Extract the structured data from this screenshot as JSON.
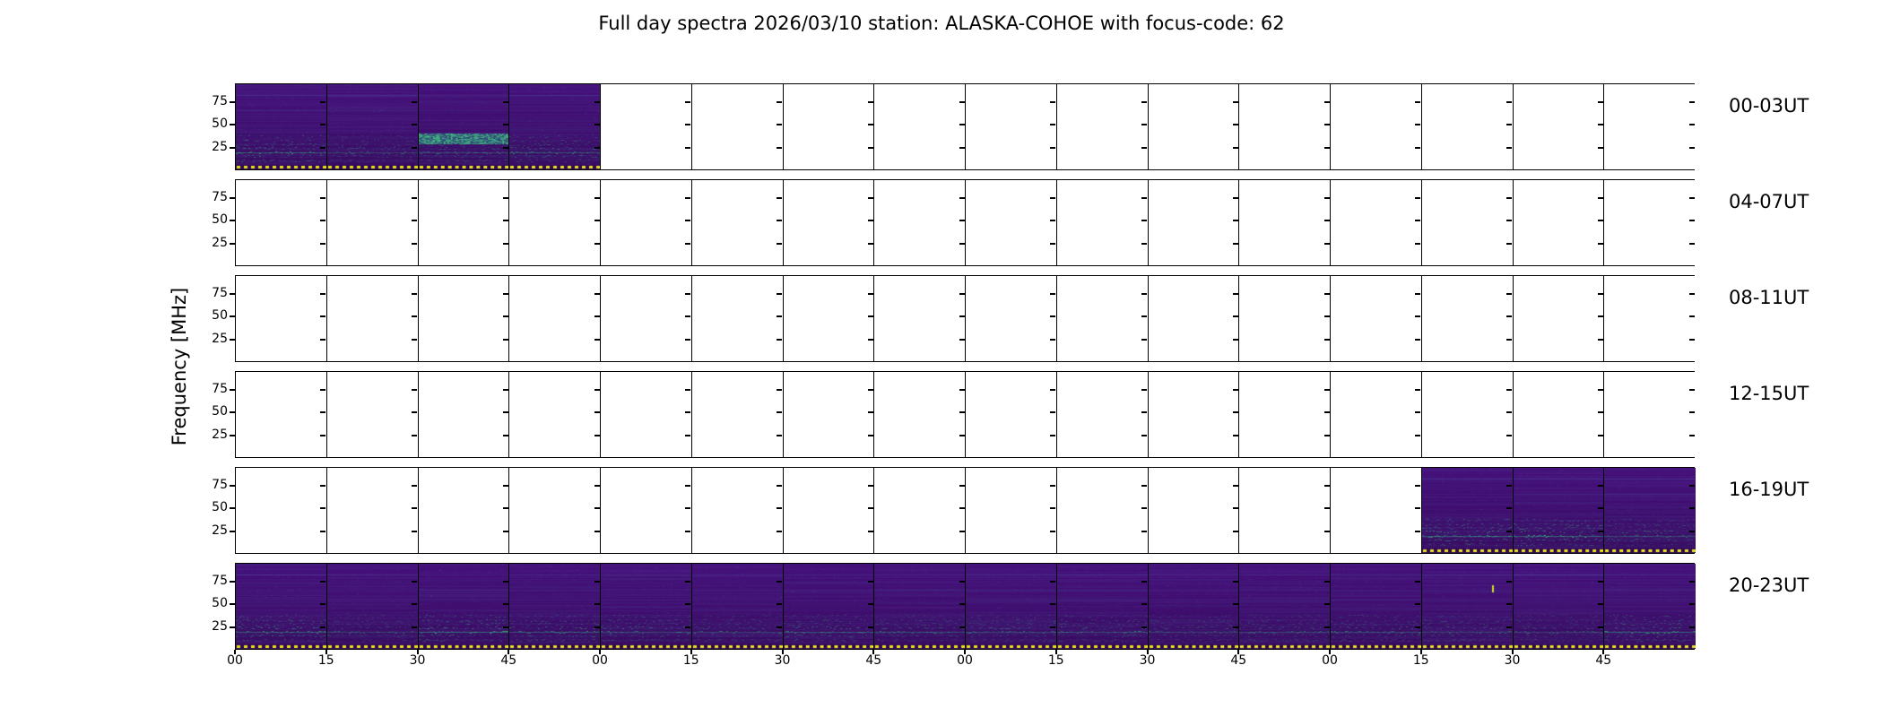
{
  "title": "Full day spectra 2026/03/10 station: ALASKA-COHOE with focus-code: 62",
  "y_axis": {
    "label": "Frequency [MHz]",
    "ticks": [
      "75",
      "50",
      "25"
    ]
  },
  "x_axis": {
    "tick_labels": [
      "00",
      "15",
      "30",
      "45",
      "00",
      "15",
      "30",
      "45",
      "00",
      "15",
      "30",
      "45",
      "00",
      "15",
      "30",
      "45"
    ]
  },
  "rows": [
    {
      "label": "00-03UT",
      "data_panels": [
        0,
        1,
        2,
        3
      ]
    },
    {
      "label": "04-07UT",
      "data_panels": []
    },
    {
      "label": "08-11UT",
      "data_panels": []
    },
    {
      "label": "12-15UT",
      "data_panels": []
    },
    {
      "label": "16-19UT",
      "data_panels": [
        13,
        14,
        15
      ]
    },
    {
      "label": "20-23UT",
      "data_panels": [
        0,
        1,
        2,
        3,
        4,
        5,
        6,
        7,
        8,
        9,
        10,
        11,
        12,
        13,
        14,
        15
      ]
    }
  ],
  "panels_per_row": 16,
  "features": [
    {
      "row": 0,
      "panel": 2,
      "type": "bright-band",
      "description": "strong teal emission band near 25 MHz, 00:30-00:45"
    },
    {
      "row": 5,
      "panel": 13,
      "type": "point-burst",
      "description": "short bright burst near 70 MHz around 23:20"
    }
  ],
  "colors": {
    "figure_background": "#ffffff",
    "panel_empty": "#ffffff",
    "border": "#000000",
    "spectrogram_base": "#45107a",
    "spectrogram_base_dark": "#380c60",
    "streak_purple": "#6b5ec2",
    "streak_blue": "#4d6fb0",
    "teal": "#21918c",
    "teal_bright": "#35b779",
    "yellow_dash": "#e8e41c",
    "burst": "#d0e11d"
  },
  "chart_data": {
    "type": "heatmap",
    "title": "Full day spectra 2026/03/10 station: ALASKA-COHOE with focus-code: 62",
    "station": "ALASKA-COHOE",
    "date": "2026/03/10",
    "focus_code": "62",
    "ylabel": "Frequency [MHz]",
    "y_ticks_mhz": [
      75,
      50,
      25
    ],
    "x_tick_labels_minutes": [
      "00",
      "15",
      "30",
      "45",
      "00",
      "15",
      "30",
      "45",
      "00",
      "15",
      "30",
      "45",
      "00",
      "15",
      "30",
      "45"
    ],
    "row_labels": [
      "00-03UT",
      "04-07UT",
      "08-11UT",
      "12-15UT",
      "16-19UT",
      "20-23UT"
    ],
    "hours_per_row": 4,
    "segments_per_row": 16,
    "segment_minutes": 15,
    "data_coverage": [
      {
        "row": "00-03UT",
        "segments_with_data": [
          0,
          1,
          2,
          3
        ],
        "coverage": "00:00-01:00"
      },
      {
        "row": "04-07UT",
        "segments_with_data": [],
        "coverage": "none"
      },
      {
        "row": "08-11UT",
        "segments_with_data": [],
        "coverage": "none"
      },
      {
        "row": "12-15UT",
        "segments_with_data": [],
        "coverage": "none"
      },
      {
        "row": "16-19UT",
        "segments_with_data": [
          13,
          14,
          15
        ],
        "coverage": "19:15-20:00"
      },
      {
        "row": "20-23UT",
        "segments_with_data": [
          0,
          1,
          2,
          3,
          4,
          5,
          6,
          7,
          8,
          9,
          10,
          11,
          12,
          13,
          14,
          15
        ],
        "coverage": "20:00-24:00"
      }
    ],
    "legend_position": "none",
    "grid": "panel borders only"
  }
}
